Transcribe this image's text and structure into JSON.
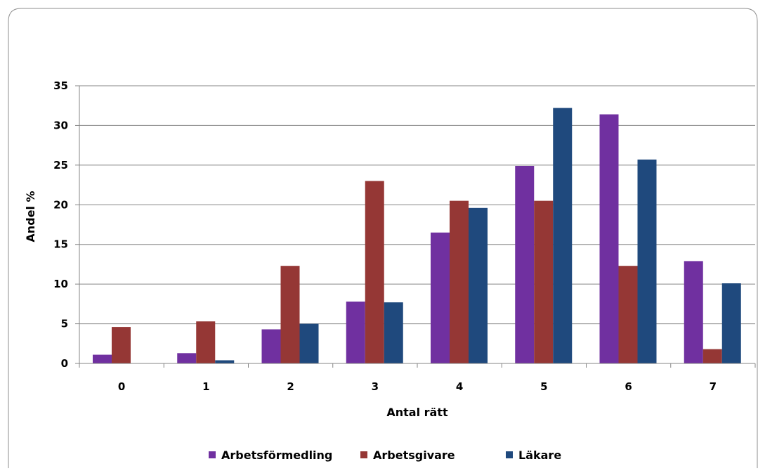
{
  "chart_data": {
    "type": "bar",
    "title": "",
    "xlabel": "Antal rätt",
    "ylabel": "Andel  %",
    "categories": [
      "0",
      "1",
      "2",
      "3",
      "4",
      "5",
      "6",
      "7"
    ],
    "yticks": [
      "0",
      "5",
      "10",
      "15",
      "20",
      "25",
      "30",
      "35"
    ],
    "ylim": [
      0,
      35
    ],
    "grid": true,
    "legend_position": "bottom",
    "series": [
      {
        "name": "Arbetsförmedling",
        "color": "#7030a0",
        "values": [
          1.1,
          1.3,
          4.3,
          7.8,
          16.5,
          24.9,
          31.4,
          12.9
        ]
      },
      {
        "name": "Arbetsgivare",
        "color": "#953735",
        "values": [
          4.6,
          5.3,
          12.3,
          23.0,
          20.5,
          20.5,
          12.3,
          1.8
        ]
      },
      {
        "name": "Läkare",
        "color": "#1f497d",
        "values": [
          0,
          0.4,
          5.0,
          7.7,
          19.6,
          32.2,
          25.7,
          10.1
        ]
      }
    ]
  }
}
